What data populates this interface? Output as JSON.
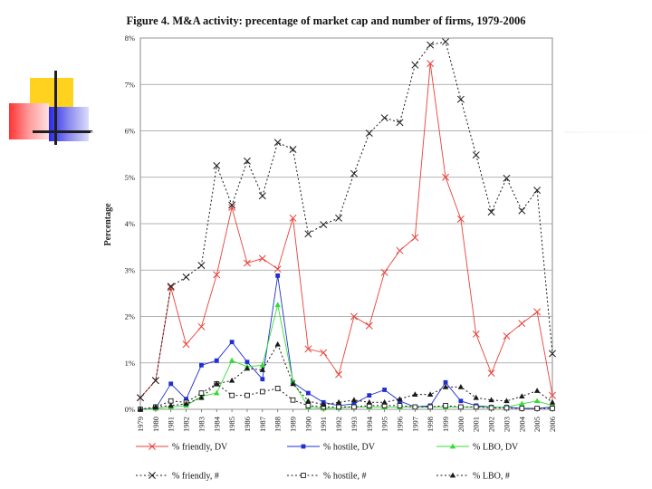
{
  "slide": {
    "accent_colors": {
      "yellow": "#ffd21f",
      "red": "#ff3333",
      "blue": "#3333ee",
      "line": "#1f1f1f"
    }
  },
  "chart_data": {
    "type": "line",
    "title": "Figure 4. M&A activity: precentage of market cap and number of  firms, 1979-2006",
    "xlabel": "",
    "ylabel": "Percentage",
    "ylim": [
      0,
      8
    ],
    "yticks": [
      "0%",
      "1%",
      "2%",
      "3%",
      "4%",
      "5%",
      "6%",
      "7%",
      "8%"
    ],
    "grid": true,
    "legend_position": "bottom",
    "categories": [
      "1979",
      "1980",
      "1981",
      "1982",
      "1983",
      "1984",
      "1985",
      "1986",
      "1987",
      "1988",
      "1989",
      "1990",
      "1991",
      "1992",
      "1993",
      "1994",
      "1995",
      "1996",
      "1997",
      "1998",
      "1999",
      "2000",
      "2001",
      "2002",
      "2003",
      "2004",
      "2005",
      "2006"
    ],
    "series": [
      {
        "name": "% friendly, DV",
        "color": "#e8413a",
        "dash": "solid",
        "marker": "x",
        "values": [
          0.25,
          0.62,
          2.62,
          1.4,
          1.78,
          2.9,
          4.35,
          3.15,
          3.25,
          3.02,
          4.12,
          1.3,
          1.22,
          0.75,
          2.0,
          1.8,
          2.95,
          3.42,
          3.7,
          7.45,
          5.0,
          4.1,
          1.62,
          0.78,
          1.58,
          1.85,
          2.1,
          0.3
        ]
      },
      {
        "name": "% hostile, DV",
        "color": "#1f2fd0",
        "dash": "solid",
        "marker": "square",
        "values": [
          0.0,
          0.02,
          0.55,
          0.22,
          0.95,
          1.05,
          1.45,
          1.02,
          0.65,
          2.88,
          0.58,
          0.35,
          0.15,
          0.08,
          0.12,
          0.3,
          0.42,
          0.18,
          0.05,
          0.08,
          0.58,
          0.18,
          0.08,
          0.05,
          0.05,
          0.02,
          0.02,
          0.05
        ]
      },
      {
        "name": "% LBO, DV",
        "color": "#33dd33",
        "dash": "solid",
        "marker": "triangle",
        "values": [
          0.0,
          0.02,
          0.05,
          0.08,
          0.28,
          0.35,
          1.05,
          0.92,
          0.95,
          2.25,
          0.6,
          0.05,
          0.02,
          0.03,
          0.05,
          0.05,
          0.05,
          0.05,
          0.05,
          0.05,
          0.05,
          0.05,
          0.05,
          0.05,
          0.05,
          0.12,
          0.18,
          0.08
        ]
      },
      {
        "name": "% friendly, #",
        "color": "#1a1a1a",
        "dash": "dotted",
        "marker": "x",
        "values": [
          0.25,
          0.62,
          2.65,
          2.85,
          3.1,
          5.25,
          4.4,
          5.35,
          4.6,
          5.75,
          5.6,
          3.78,
          3.98,
          4.12,
          5.08,
          5.95,
          6.28,
          6.18,
          7.42,
          7.85,
          7.92,
          6.68,
          5.48,
          4.25,
          4.98,
          4.28,
          4.72,
          1.2
        ]
      },
      {
        "name": "% hostile, #",
        "color": "#1a1a1a",
        "dash": "dotted",
        "marker": "open-square",
        "values": [
          0.0,
          0.05,
          0.18,
          0.15,
          0.35,
          0.55,
          0.3,
          0.3,
          0.38,
          0.45,
          0.2,
          0.08,
          0.05,
          0.05,
          0.05,
          0.08,
          0.08,
          0.08,
          0.05,
          0.05,
          0.08,
          0.05,
          0.05,
          0.03,
          0.03,
          0.02,
          0.02,
          0.02
        ]
      },
      {
        "name": "% LBO, #",
        "color": "#1a1a1a",
        "dash": "dotted",
        "marker": "filled-triangle",
        "values": [
          0.0,
          0.05,
          0.08,
          0.12,
          0.25,
          0.55,
          0.62,
          0.88,
          0.85,
          1.4,
          0.55,
          0.18,
          0.1,
          0.15,
          0.2,
          0.15,
          0.15,
          0.22,
          0.32,
          0.32,
          0.48,
          0.48,
          0.25,
          0.2,
          0.18,
          0.28,
          0.4,
          0.15
        ]
      }
    ]
  }
}
